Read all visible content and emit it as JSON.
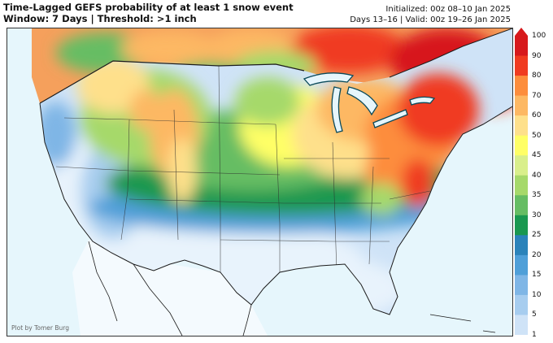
{
  "header": {
    "title_line1": "Time-Lagged GEFS probability of at least 1 snow event",
    "title_line2": "Window: 7 Days | Threshold: >1 inch",
    "init_line": "Initialized: 00z 08–10 Jan 2025",
    "valid_line": "Days 13–16 | Valid: 00z 19–26 Jan 2025"
  },
  "map": {
    "region": "Continental United States",
    "credit": "Plot by Tomer Burg"
  },
  "colorbar": {
    "ticks": [
      "100",
      "90",
      "80",
      "70",
      "60",
      "50",
      "45",
      "40",
      "35",
      "30",
      "25",
      "20",
      "15",
      "10",
      "5",
      "1"
    ],
    "colors": [
      "#d7191c",
      "#f03b20",
      "#fd8d3c",
      "#fdb863",
      "#fee08b",
      "#ffff66",
      "#d9ef8b",
      "#a6d96a",
      "#66bd63",
      "#1a9850",
      "#2b83ba",
      "#4f9fd8",
      "#7fb6e6",
      "#a7cdef",
      "#cfe3f7",
      "#e8f3fc"
    ]
  }
}
